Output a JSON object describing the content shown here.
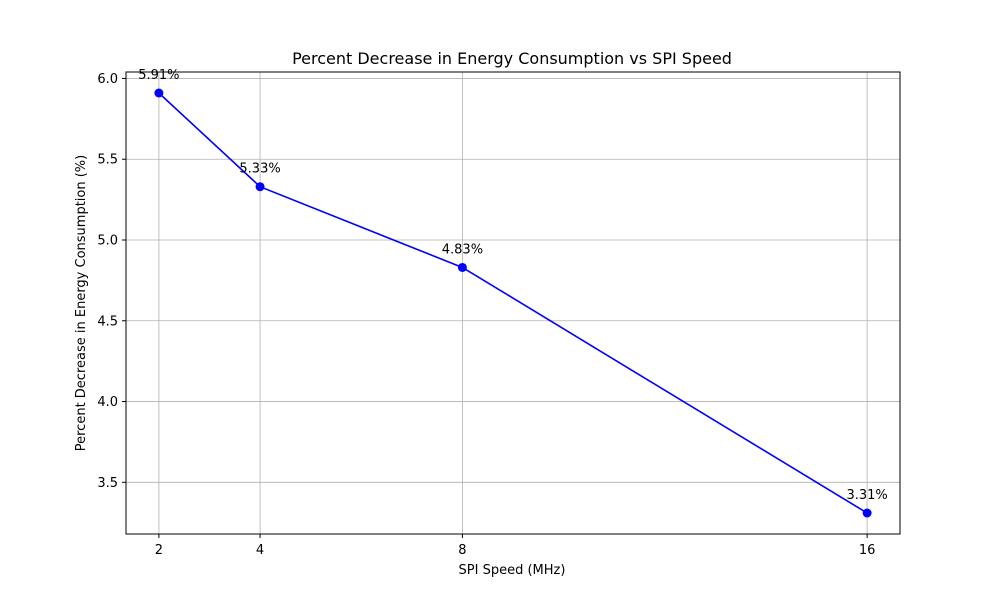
{
  "chart_data": {
    "type": "line",
    "title": "Percent Decrease in Energy Consumption vs SPI Speed",
    "xlabel": "SPI Speed (MHz)",
    "ylabel": "Percent Decrease in Energy Consumption (%)",
    "x": [
      2,
      4,
      8,
      16
    ],
    "series": [
      {
        "values": [
          5.91,
          5.33,
          4.83,
          3.31
        ],
        "labels": [
          "5.91%",
          "5.33%",
          "4.83%",
          "3.31%"
        ],
        "color": "#0000ff",
        "marker": "circle"
      }
    ],
    "xticks": [
      2,
      4,
      8,
      16
    ],
    "xtick_labels": [
      "2",
      "4",
      "8",
      "16"
    ],
    "yticks": [
      3.5,
      4.0,
      4.5,
      5.0,
      5.5,
      6.0
    ],
    "ytick_labels": [
      "3.5",
      "4.0",
      "4.5",
      "5.0",
      "5.5",
      "6.0"
    ],
    "xlim": [
      1.35,
      16.65
    ],
    "ylim": [
      3.18,
      6.04
    ],
    "grid": true,
    "legend": "none"
  }
}
